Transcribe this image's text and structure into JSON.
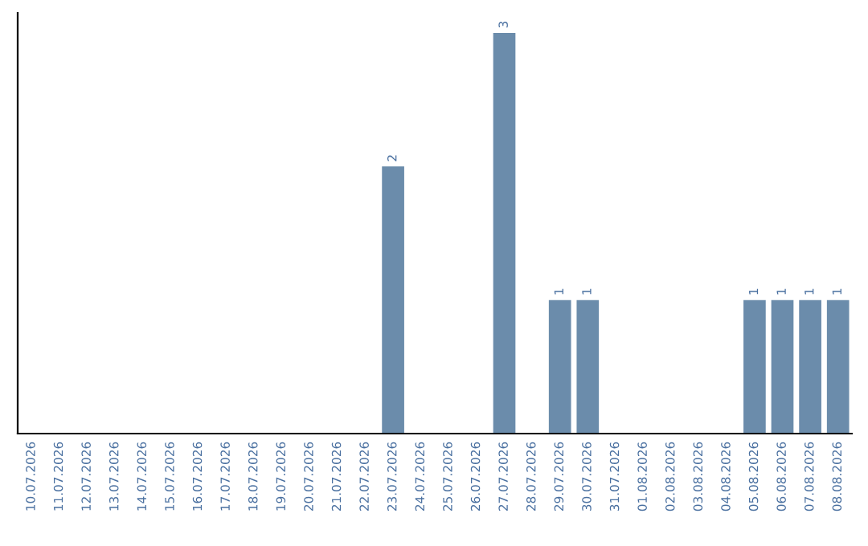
{
  "chart_data": {
    "type": "bar",
    "categories": [
      "10.07.2026",
      "11.07.2026",
      "12.07.2026",
      "13.07.2026",
      "14.07.2026",
      "15.07.2026",
      "16.07.2026",
      "17.07.2026",
      "18.07.2026",
      "19.07.2026",
      "20.07.2026",
      "21.07.2026",
      "22.07.2026",
      "23.07.2026",
      "24.07.2026",
      "25.07.2026",
      "26.07.2026",
      "27.07.2026",
      "28.07.2026",
      "29.07.2026",
      "30.07.2026",
      "31.07.2026",
      "01.08.2026",
      "02.08.2026",
      "03.08.2026",
      "04.08.2026",
      "05.08.2026",
      "06.08.2026",
      "07.08.2026",
      "08.08.2026"
    ],
    "values": [
      null,
      null,
      null,
      null,
      null,
      null,
      null,
      null,
      null,
      null,
      null,
      null,
      null,
      2,
      null,
      null,
      null,
      3,
      null,
      1,
      1,
      null,
      null,
      null,
      null,
      null,
      1,
      1,
      1,
      1
    ],
    "value_labels": [
      null,
      null,
      null,
      null,
      null,
      null,
      null,
      null,
      null,
      null,
      null,
      null,
      null,
      "2",
      null,
      null,
      null,
      "3",
      null,
      "1",
      "1",
      null,
      null,
      null,
      null,
      null,
      "1",
      "1",
      "1",
      "1"
    ],
    "color": "#6b8cab",
    "tick_labels": "x"
  }
}
